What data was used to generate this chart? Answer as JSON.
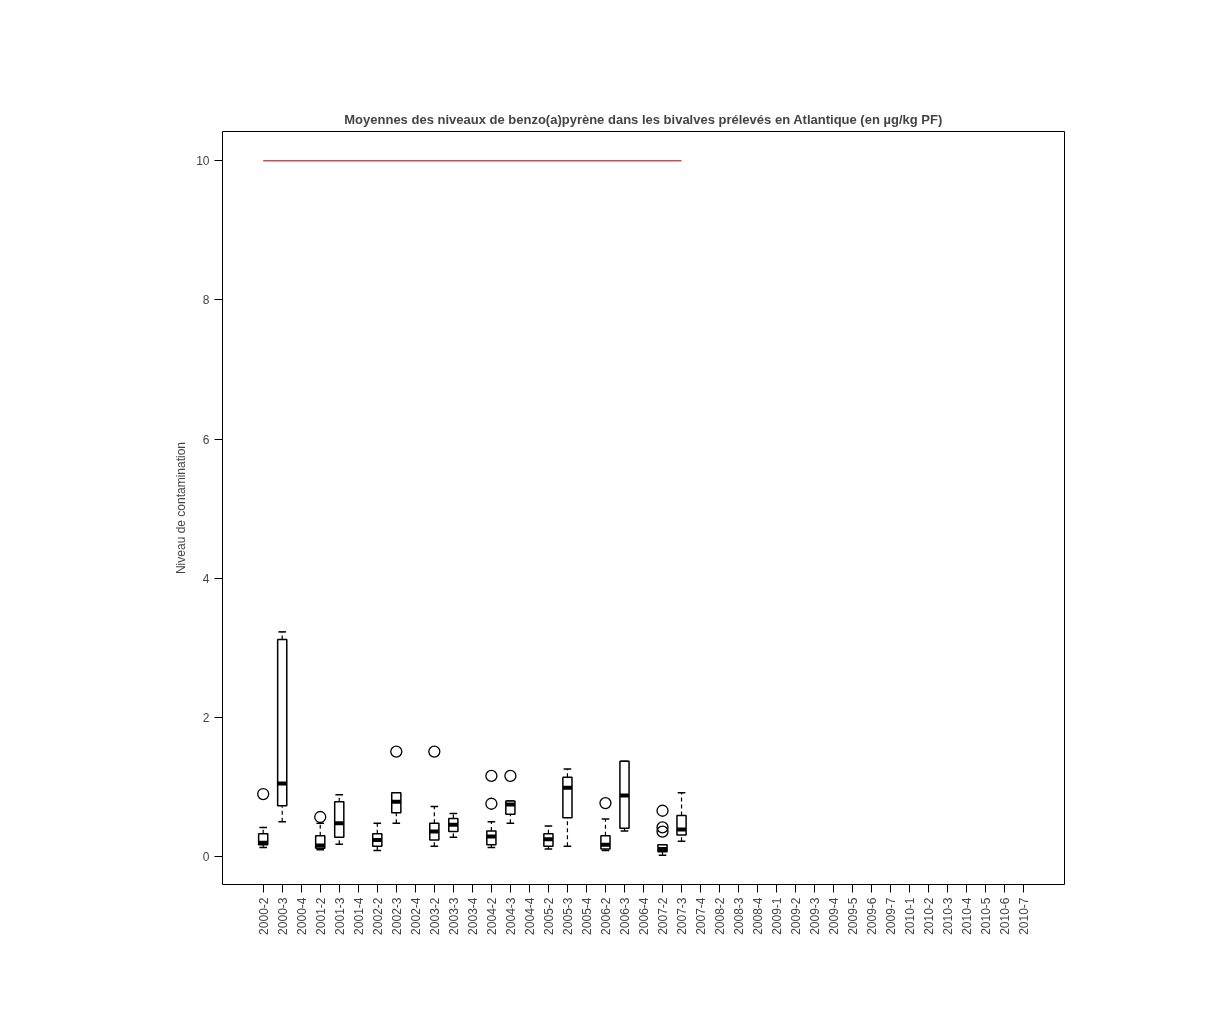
{
  "chart_data": {
    "type": "box",
    "title": "Moyennes des niveaux de benzo(a)pyrène dans les bivalves prélevés en Atlantique (en µg/kg PF)",
    "ylabel": "Niveau de contamination",
    "categories": [
      "2000-2",
      "2000-3",
      "2000-4",
      "2001-2",
      "2001-3",
      "2001-4",
      "2002-2",
      "2002-3",
      "2002-4",
      "2003-2",
      "2003-3",
      "2003-4",
      "2004-2",
      "2004-3",
      "2004-4",
      "2005-2",
      "2005-3",
      "2005-4",
      "2006-2",
      "2006-3",
      "2006-4",
      "2007-2",
      "2007-3",
      "2007-4",
      "2008-2",
      "2008-3",
      "2008-4",
      "2009-1",
      "2009-2",
      "2009-3",
      "2009-4",
      "2009-5",
      "2009-6",
      "2009-7",
      "2010-1",
      "2010-2",
      "2010-3",
      "2010-4",
      "2010-5",
      "2010-6",
      "2010-7"
    ],
    "boxes": [
      {
        "low": 0.13,
        "q1": 0.17,
        "median": 0.2,
        "q3": 0.33,
        "high": 0.42,
        "outliers": [
          0.9
        ]
      },
      {
        "low": 0.5,
        "q1": 0.73,
        "median": 1.05,
        "q3": 3.12,
        "high": 3.23
      },
      null,
      {
        "low": 0.1,
        "q1": 0.12,
        "median": 0.16,
        "q3": 0.3,
        "high": 0.48,
        "outliers": [
          0.57
        ]
      },
      {
        "low": 0.18,
        "q1": 0.28,
        "median": 0.48,
        "q3": 0.79,
        "high": 0.89
      },
      null,
      {
        "low": 0.09,
        "q1": 0.15,
        "median": 0.24,
        "q3": 0.33,
        "high": 0.48
      },
      {
        "low": 0.48,
        "q1": 0.63,
        "median": 0.79,
        "q3": 0.92,
        "high": 0.92,
        "outliers": [
          1.51
        ]
      },
      null,
      {
        "low": 0.15,
        "q1": 0.24,
        "median": 0.36,
        "q3": 0.48,
        "high": 0.72,
        "outliers": [
          1.51
        ]
      },
      {
        "low": 0.28,
        "q1": 0.36,
        "median": 0.46,
        "q3": 0.55,
        "high": 0.62
      },
      null,
      {
        "low": 0.13,
        "q1": 0.17,
        "median": 0.29,
        "q3": 0.37,
        "high": 0.5,
        "outliers": [
          0.76,
          1.16
        ]
      },
      {
        "low": 0.48,
        "q1": 0.61,
        "median": 0.75,
        "q3": 0.8,
        "high": 0.8,
        "outliers": [
          1.16
        ]
      },
      null,
      {
        "low": 0.11,
        "q1": 0.15,
        "median": 0.25,
        "q3": 0.33,
        "high": 0.44
      },
      {
        "low": 0.15,
        "q1": 0.56,
        "median": 0.99,
        "q3": 1.14,
        "high": 1.26
      },
      null,
      {
        "low": 0.09,
        "q1": 0.11,
        "median": 0.17,
        "q3": 0.3,
        "high": 0.54,
        "outliers": [
          0.77
        ]
      },
      {
        "low": 0.37,
        "q1": 0.41,
        "median": 0.88,
        "q3": 1.37,
        "high": 1.37
      },
      null,
      {
        "low": 0.02,
        "q1": 0.07,
        "median": 0.11,
        "q3": 0.17,
        "high": 0.17,
        "outliers": [
          0.36,
          0.42,
          0.66
        ]
      },
      {
        "low": 0.22,
        "q1": 0.31,
        "median": 0.39,
        "q3": 0.59,
        "high": 0.92
      },
      null,
      null,
      null,
      null,
      null,
      null,
      null,
      null,
      null,
      null,
      null,
      null,
      null,
      null,
      null,
      null,
      null,
      null
    ],
    "series": [
      {
        "type": "line",
        "color": "#c85050",
        "values": [
          10,
          10,
          10,
          10,
          10,
          10,
          10,
          10,
          10,
          10,
          10,
          10,
          10,
          10,
          10,
          10,
          10,
          10,
          10,
          10,
          10,
          10,
          10,
          null,
          null,
          null,
          null,
          null,
          null,
          null,
          null,
          null,
          null,
          null,
          null,
          null,
          null,
          null,
          null,
          null,
          null
        ]
      }
    ],
    "ylim": [
      -0.4,
      10.42
    ],
    "yticks": [
      0,
      2,
      4,
      6,
      8,
      10
    ]
  }
}
